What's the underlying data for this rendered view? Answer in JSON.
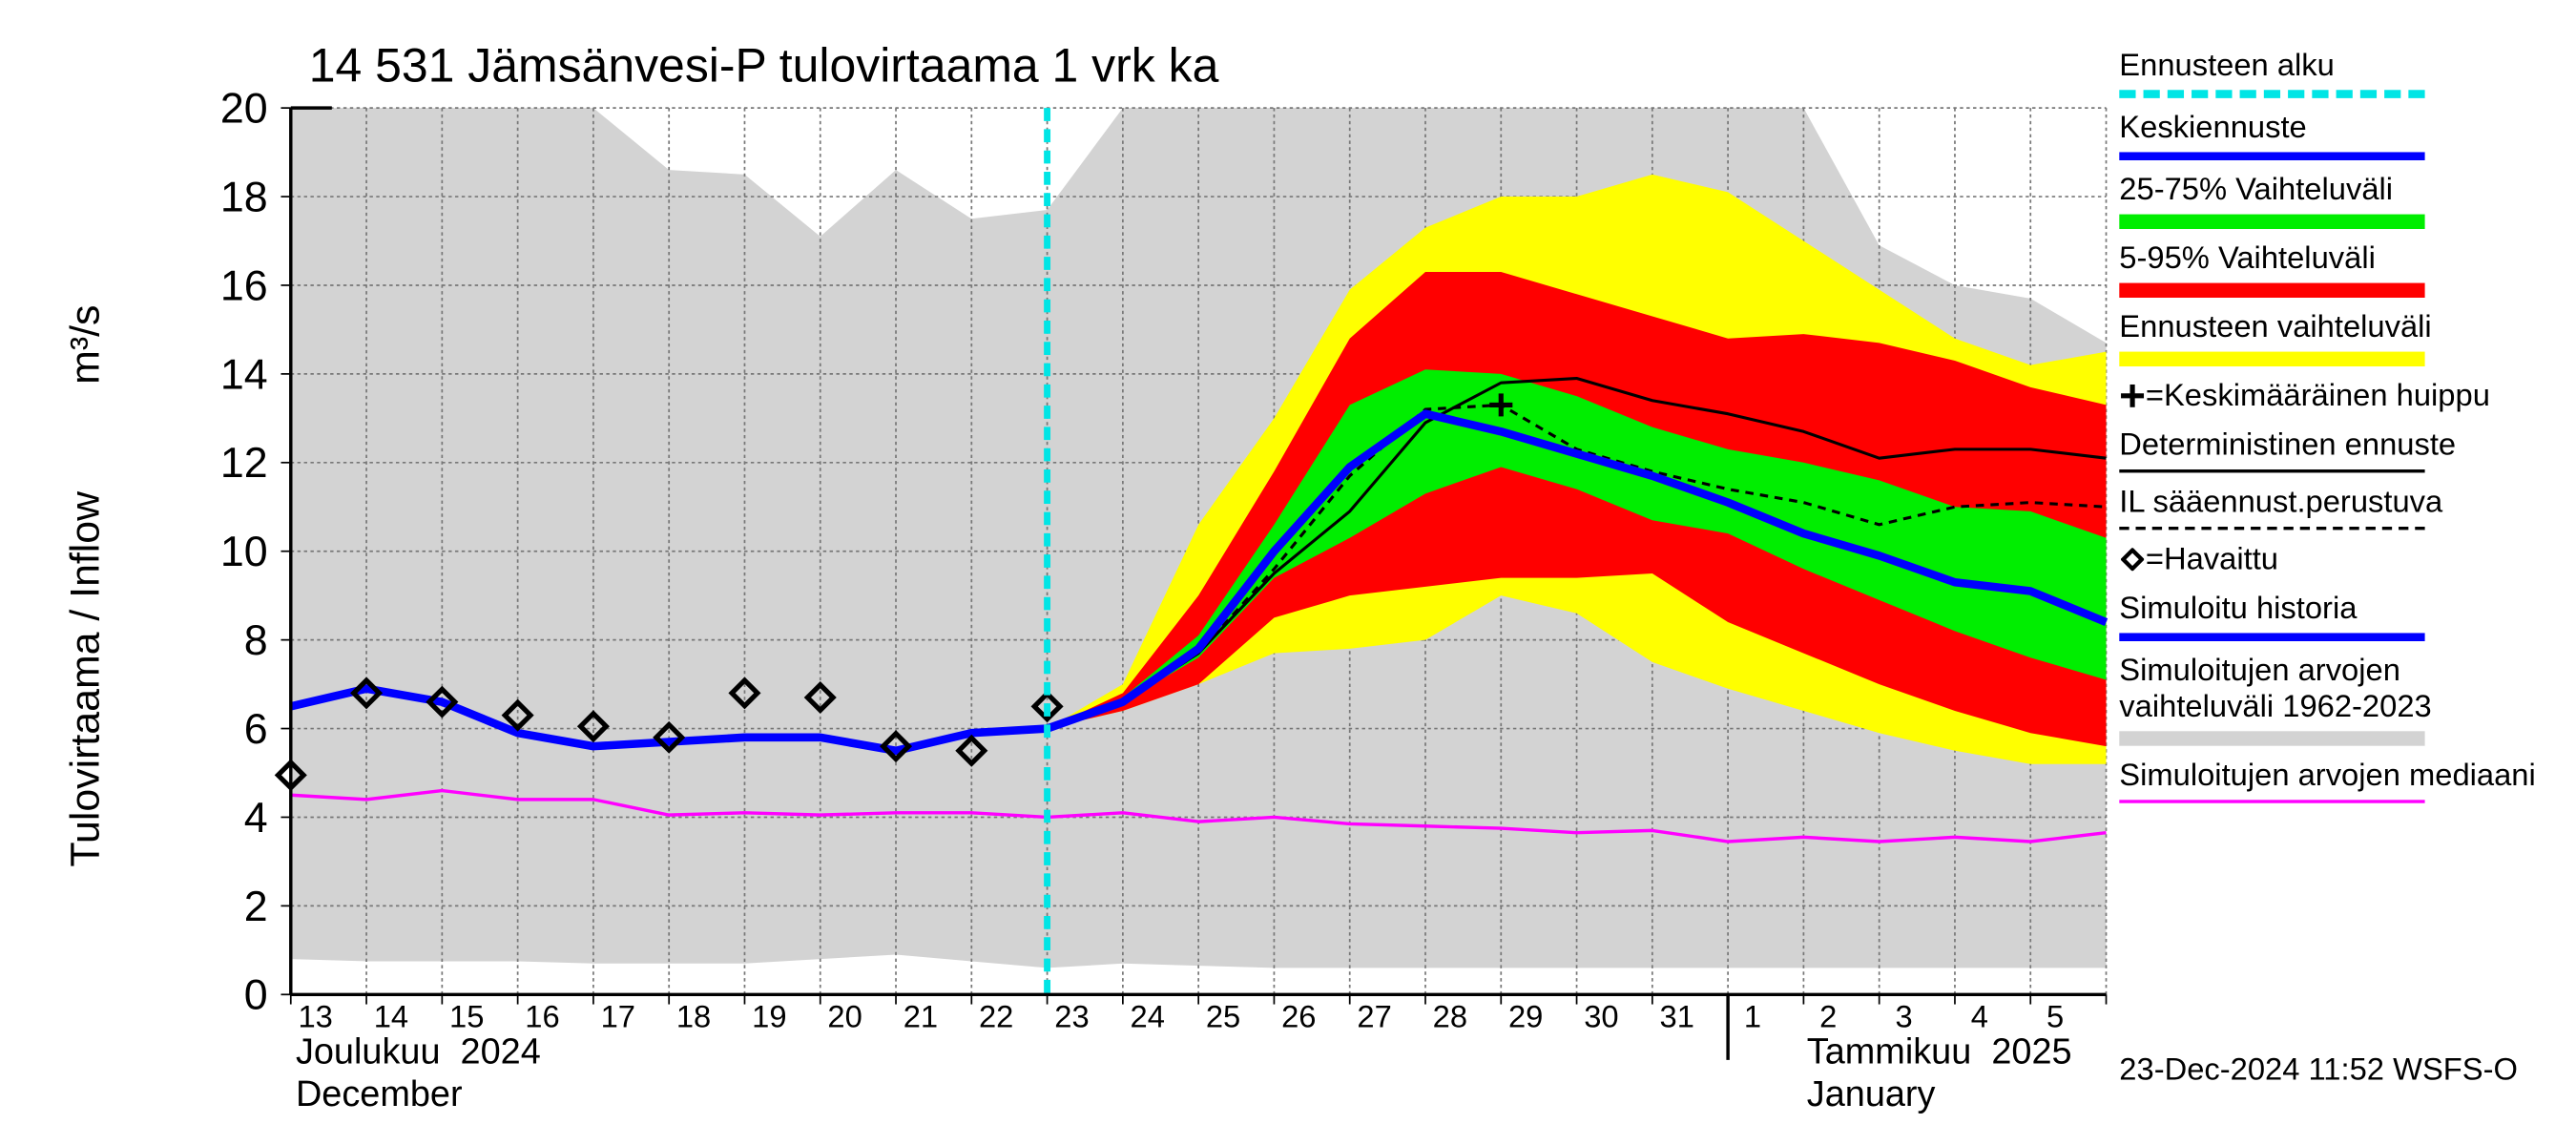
{
  "chart_data": {
    "type": "line",
    "title": "14 531 Jämsänvesi-P tulovirtaama 1 vrk ka",
    "y_label": "Tulovirtaama / Inflow",
    "y_unit": "m³/s",
    "categories": [
      "13",
      "14",
      "15",
      "16",
      "17",
      "18",
      "19",
      "20",
      "21",
      "22",
      "23",
      "24",
      "25",
      "26",
      "27",
      "28",
      "29",
      "30",
      "31",
      "1",
      "2",
      "3",
      "4",
      "5",
      null
    ],
    "month_labels": [
      {
        "text": "Joulukuu  2024",
        "sub": "December",
        "start": "13"
      },
      {
        "text": "Tammikuu  2025",
        "sub": "January",
        "start": "1"
      }
    ],
    "ylim": [
      0,
      20
    ],
    "yticks": [
      0,
      2,
      4,
      6,
      8,
      10,
      12,
      14,
      16,
      18,
      20
    ],
    "grid": true,
    "footer": "23-Dec-2024 11:52 WSFS-O",
    "series": [
      {
        "name": "Ennusteen alku",
        "kind": "vline",
        "color": "#00e5e5",
        "dashed": true,
        "at": "23"
      },
      {
        "name": "Keskiennuste",
        "kind": "line",
        "color": "#0000ff",
        "width": 5,
        "values": [
          null,
          null,
          null,
          null,
          null,
          null,
          null,
          null,
          null,
          null,
          6.0,
          6.6,
          7.8,
          10.0,
          11.9,
          13.1,
          12.7,
          12.2,
          11.7,
          11.1,
          10.4,
          9.9,
          9.3,
          9.1,
          8.4
        ]
      },
      {
        "name": "25-75% Vaihteluväli",
        "kind": "band",
        "color": "#00ee00",
        "low": [
          null,
          null,
          null,
          null,
          null,
          null,
          null,
          null,
          null,
          null,
          6.0,
          6.6,
          7.6,
          9.4,
          10.3,
          11.3,
          11.9,
          11.4,
          10.7,
          10.4,
          9.6,
          8.9,
          8.2,
          7.6,
          7.1
        ],
        "high": [
          null,
          null,
          null,
          null,
          null,
          null,
          null,
          null,
          null,
          null,
          6.0,
          6.7,
          8.1,
          10.6,
          13.3,
          14.1,
          14.0,
          13.5,
          12.8,
          12.3,
          12.0,
          11.6,
          11.0,
          10.9,
          10.3
        ]
      },
      {
        "name": "5-95% Vaihteluväli",
        "kind": "band",
        "color": "#ff0000",
        "low": [
          null,
          null,
          null,
          null,
          null,
          null,
          null,
          null,
          null,
          null,
          6.0,
          6.4,
          7.0,
          8.5,
          9.0,
          9.2,
          9.4,
          9.4,
          9.5,
          8.4,
          7.7,
          7.0,
          6.4,
          5.9,
          5.6
        ],
        "high": [
          null,
          null,
          null,
          null,
          null,
          null,
          null,
          null,
          null,
          null,
          6.0,
          6.8,
          9.0,
          11.8,
          14.8,
          16.3,
          16.3,
          15.8,
          15.3,
          14.8,
          14.9,
          14.7,
          14.3,
          13.7,
          13.3
        ]
      },
      {
        "name": "Ennusteen vaihteluväli",
        "kind": "band",
        "color": "#ffff00",
        "low": [
          null,
          null,
          null,
          null,
          null,
          null,
          null,
          null,
          null,
          null,
          6.0,
          6.4,
          7.0,
          7.7,
          7.8,
          8.0,
          9.0,
          8.6,
          7.5,
          6.9,
          6.4,
          5.9,
          5.5,
          5.2,
          5.2
        ],
        "high": [
          null,
          null,
          null,
          null,
          null,
          null,
          null,
          null,
          null,
          null,
          6.0,
          7.0,
          10.6,
          13.0,
          15.9,
          17.3,
          18.0,
          18.0,
          18.5,
          18.1,
          17.0,
          15.9,
          14.8,
          14.2,
          14.5
        ]
      },
      {
        "name": "=Keskimääräinen huippu",
        "kind": "plus",
        "color": "#000000",
        "values": [
          null,
          null,
          null,
          null,
          null,
          null,
          null,
          null,
          null,
          null,
          null,
          null,
          null,
          null,
          null,
          null,
          13.3,
          null,
          null,
          null,
          null,
          null,
          null,
          null,
          null
        ]
      },
      {
        "name": "Deterministinen ennuste",
        "kind": "line",
        "color": "#000000",
        "width": 1.8,
        "values": [
          null,
          null,
          null,
          null,
          null,
          null,
          null,
          null,
          null,
          null,
          6.0,
          6.6,
          7.7,
          9.5,
          10.9,
          12.9,
          13.8,
          13.9,
          13.4,
          13.1,
          12.7,
          12.1,
          12.3,
          12.3,
          12.1
        ]
      },
      {
        "name": "IL sääennust.perustuva",
        "kind": "line",
        "color": "#000000",
        "width": 1.8,
        "dashed": true,
        "values": [
          null,
          null,
          null,
          null,
          null,
          null,
          null,
          null,
          null,
          null,
          6.0,
          6.6,
          7.7,
          9.6,
          11.7,
          13.2,
          13.3,
          12.3,
          11.8,
          11.4,
          11.1,
          10.6,
          11.0,
          11.1,
          11.0
        ]
      },
      {
        "name": "=Havaittu",
        "kind": "diamond",
        "color": "#000000",
        "values": [
          4.95,
          6.8,
          6.6,
          6.3,
          6.05,
          5.8,
          6.8,
          6.7,
          5.6,
          5.5,
          6.5,
          null,
          null,
          null,
          null,
          null,
          null,
          null,
          null,
          null,
          null,
          null,
          null,
          null,
          null
        ]
      },
      {
        "name": "Simuloitu historia",
        "kind": "line",
        "color": "#0000ff",
        "width": 5,
        "values": [
          6.5,
          6.9,
          6.6,
          5.9,
          5.6,
          5.7,
          5.8,
          5.8,
          5.5,
          5.9,
          6.0,
          null,
          null,
          null,
          null,
          null,
          null,
          null,
          null,
          null,
          null,
          null,
          null,
          null,
          null
        ]
      },
      {
        "name": "Simuloitujen arvojen vaihteluväli 1962-2023",
        "kind": "band",
        "color": "#d3d3d3",
        "low": [
          0.8,
          0.75,
          0.75,
          0.75,
          0.7,
          0.7,
          0.7,
          0.8,
          0.9,
          0.75,
          0.6,
          0.7,
          0.65,
          0.6,
          0.6,
          0.6,
          0.6,
          0.6,
          0.6,
          0.6,
          0.6,
          0.6,
          0.6,
          0.6,
          0.6
        ],
        "high": [
          20,
          20,
          20,
          20,
          20,
          18.6,
          18.5,
          17.1,
          18.6,
          17.5,
          17.7,
          20,
          20,
          20,
          20,
          20,
          20,
          20,
          20,
          20,
          20,
          16.9,
          16.0,
          15.7,
          14.7
        ]
      },
      {
        "name": "Simuloitujen arvojen mediaani",
        "kind": "line",
        "color": "#ff00ff",
        "width": 2,
        "values": [
          4.5,
          4.4,
          4.6,
          4.4,
          4.4,
          4.05,
          4.1,
          4.05,
          4.1,
          4.1,
          4.0,
          4.1,
          3.9,
          4.0,
          3.85,
          3.8,
          3.75,
          3.65,
          3.7,
          3.45,
          3.55,
          3.45,
          3.55,
          3.45,
          3.65
        ]
      }
    ]
  }
}
